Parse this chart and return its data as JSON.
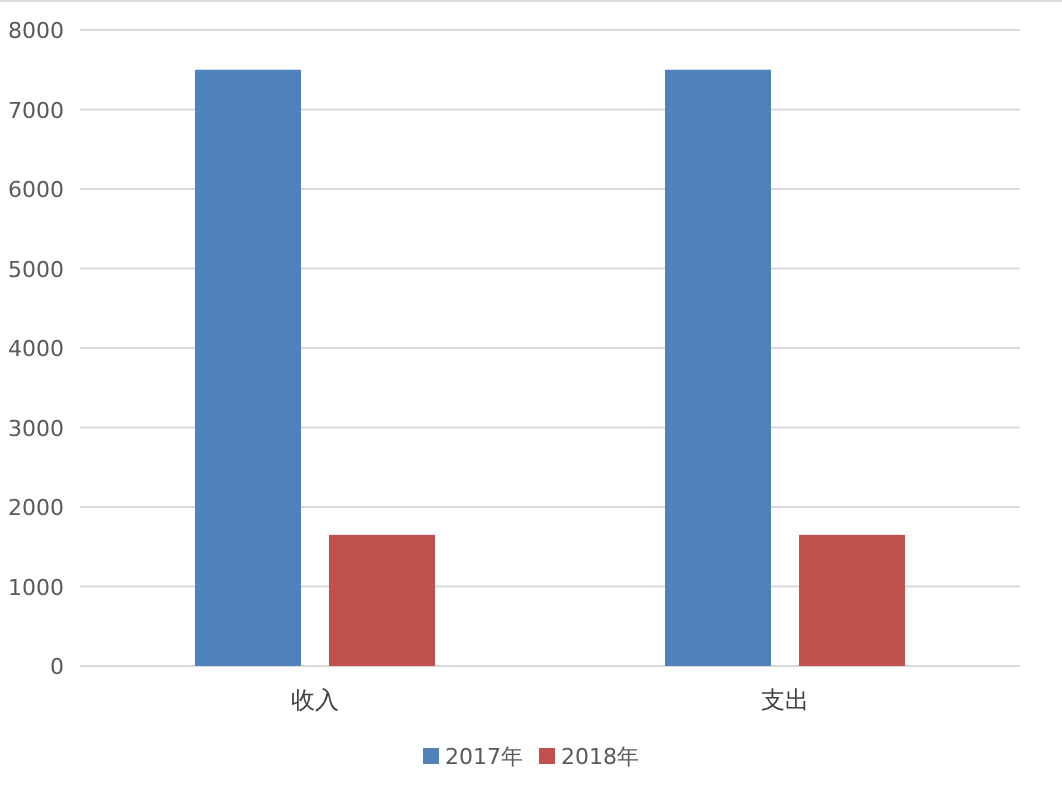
{
  "chart_data": {
    "type": "bar",
    "categories": [
      "收入",
      "支出"
    ],
    "series": [
      {
        "name": "2017年",
        "color": "#4f81bd",
        "values": [
          7500,
          7500
        ]
      },
      {
        "name": "2018年",
        "color": "#c0504d",
        "values": [
          1650,
          1650
        ]
      }
    ],
    "ylim": [
      0,
      8000
    ],
    "yticks": [
      0,
      1000,
      2000,
      3000,
      4000,
      5000,
      6000,
      7000,
      8000
    ],
    "grid": "y",
    "legend": "bottom"
  }
}
